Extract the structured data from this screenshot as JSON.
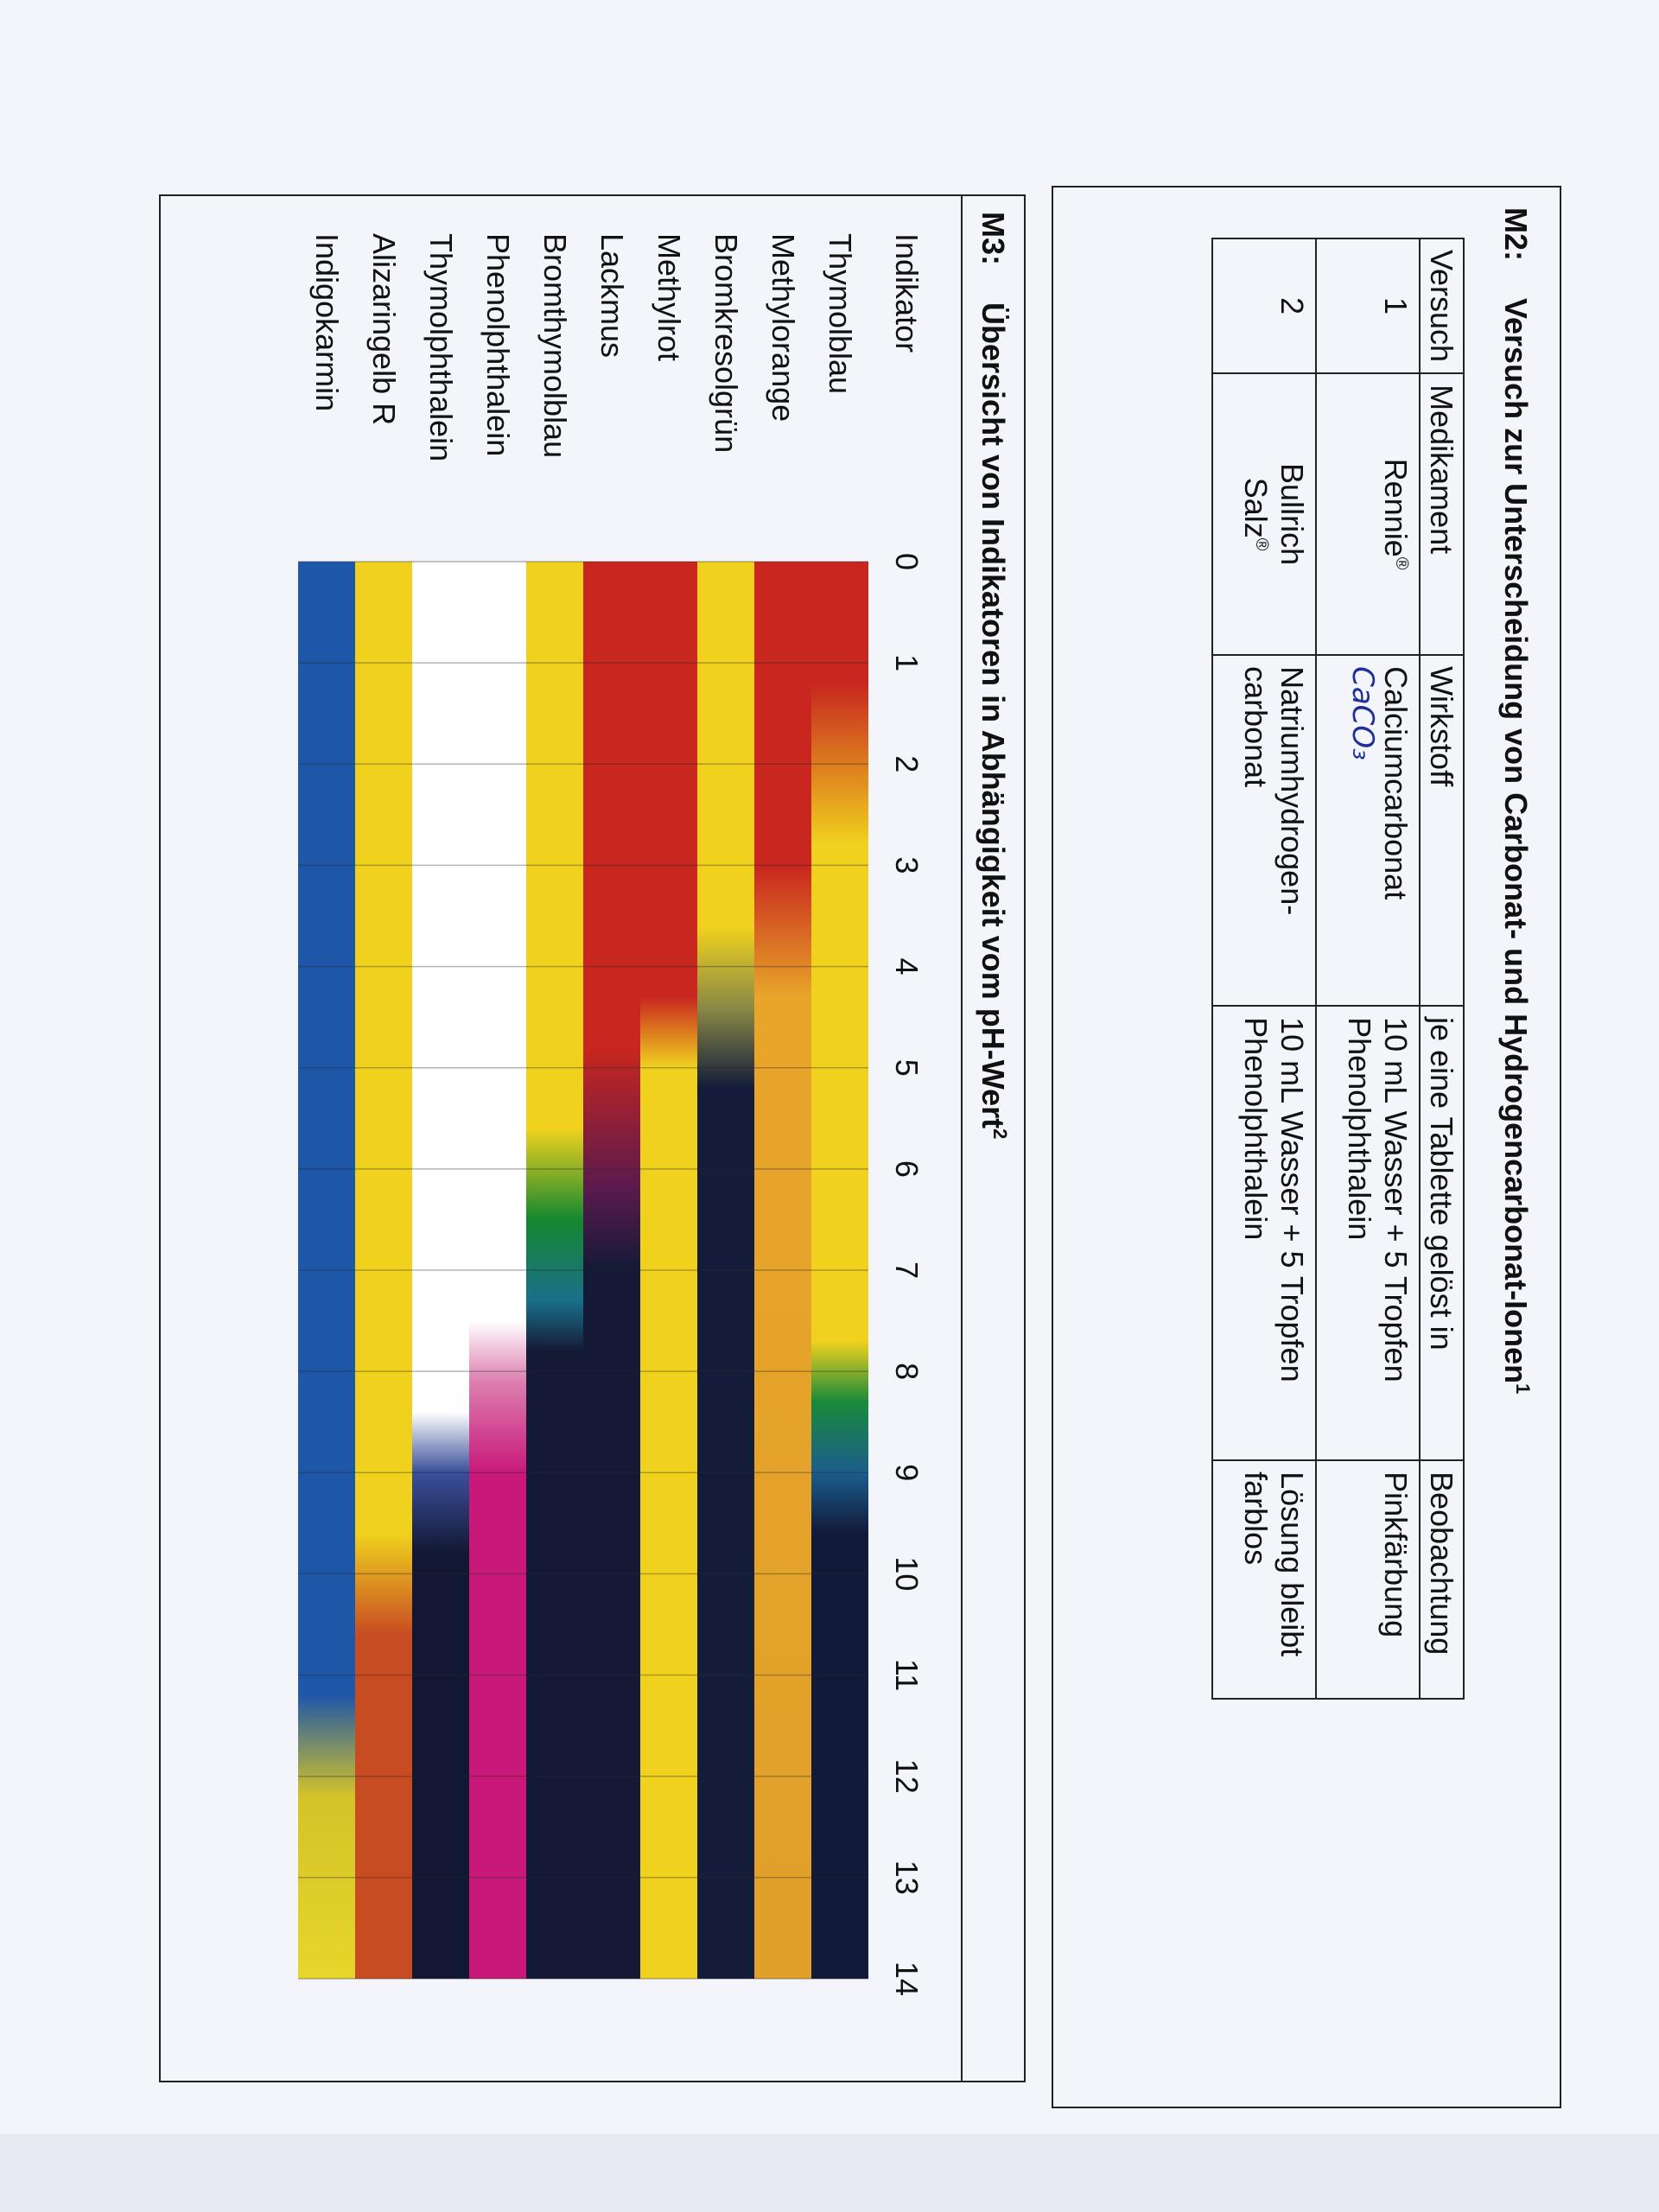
{
  "m2": {
    "label": "M2:",
    "title": "Versuch zur Unterscheidung von Carbonat- und Hydrogencarbonat-Ionen",
    "footnote_mark": "1",
    "headers": [
      "Versuch",
      "Medikament",
      "Wirkstoff",
      "je eine Tablette gelöst in",
      "Beobachtung"
    ],
    "rows": [
      {
        "versuch": "1",
        "medikament": "Rennie",
        "medikament_mark": "®",
        "wirkstoff": "Calciumcarbonat",
        "handwritten": "CaCO₃",
        "geloest_line1": "10 mL Wasser + 5 Tropfen",
        "geloest_line2": "Phenolphthalein",
        "beobachtung_line1": "Pinkfärbung",
        "beobachtung_line2": ""
      },
      {
        "versuch": "2",
        "medikament": "Bullrich",
        "medikament_line2": "Salz",
        "medikament_mark": "®",
        "wirkstoff": "Natriumhydrogen-",
        "wirkstoff_line2": "carbonat",
        "geloest_line1": "10 mL Wasser + 5 Tropfen",
        "geloest_line2": "Phenolphthalein",
        "beobachtung_line1": "Lösung bleibt",
        "beobachtung_line2": "farblos"
      }
    ]
  },
  "m3": {
    "label": "M3:",
    "title": "Übersicht von Indikatoren in Abhängigkeit vom pH-Wert",
    "footnote_mark": "2",
    "indicator_header": "Indikator",
    "ph_ticks": [
      "0",
      "1",
      "2",
      "3",
      "4",
      "5",
      "6",
      "7",
      "8",
      "9",
      "10",
      "11",
      "12",
      "13",
      "14"
    ],
    "indicators": [
      {
        "name": "Thymolblau",
        "stops": [
          [
            0,
            "#c8261f"
          ],
          [
            1.2,
            "#c8261f"
          ],
          [
            2.8,
            "#f0d21e"
          ],
          [
            7.7,
            "#f0d21e"
          ],
          [
            8.3,
            "#1a8a3a"
          ],
          [
            9.0,
            "#1b5d8c"
          ],
          [
            9.6,
            "#121a3a"
          ],
          [
            14,
            "#121a3a"
          ]
        ]
      },
      {
        "name": "Methylorange",
        "stops": [
          [
            0,
            "#c8261f"
          ],
          [
            3.0,
            "#c8261f"
          ],
          [
            4.3,
            "#e8a52a"
          ],
          [
            14,
            "#e0a02a"
          ]
        ]
      },
      {
        "name": "Bromkresolgrün",
        "stops": [
          [
            0,
            "#f0d21e"
          ],
          [
            3.6,
            "#f0d21e"
          ],
          [
            4.4,
            "#8b8a45"
          ],
          [
            5.2,
            "#141c3a"
          ],
          [
            14,
            "#141c3a"
          ]
        ]
      },
      {
        "name": "Methylrot",
        "stops": [
          [
            0,
            "#c8261f"
          ],
          [
            4.3,
            "#c8261f"
          ],
          [
            5.0,
            "#f0d21e"
          ],
          [
            14,
            "#f0d21e"
          ]
        ]
      },
      {
        "name": "Lackmus",
        "stops": [
          [
            0,
            "#c8261f"
          ],
          [
            4.8,
            "#c8261f"
          ],
          [
            6.2,
            "#5a1a4e"
          ],
          [
            7.0,
            "#141a36"
          ],
          [
            14,
            "#141a36"
          ]
        ]
      },
      {
        "name": "Bromthymolblau",
        "stops": [
          [
            0,
            "#f0d21e"
          ],
          [
            5.6,
            "#f0d21e"
          ],
          [
            6.5,
            "#15882f"
          ],
          [
            7.3,
            "#1a6f8a"
          ],
          [
            7.8,
            "#141a36"
          ],
          [
            14,
            "#141a36"
          ]
        ]
      },
      {
        "name": "Phenolphthalein",
        "stops": [
          [
            0,
            "#ffffff"
          ],
          [
            7.5,
            "#ffffff"
          ],
          [
            8.1,
            "#dd7fb0"
          ],
          [
            9.0,
            "#c8197a"
          ],
          [
            14,
            "#c8197a"
          ]
        ]
      },
      {
        "name": "Thymolphthalein",
        "stops": [
          [
            0,
            "#ffffff"
          ],
          [
            8.4,
            "#ffffff"
          ],
          [
            9.0,
            "#3a4f9a"
          ],
          [
            9.8,
            "#121833"
          ],
          [
            14,
            "#121833"
          ]
        ]
      },
      {
        "name": "Alizaringelb R",
        "stops": [
          [
            0,
            "#f0d21e"
          ],
          [
            9.6,
            "#f0d21e"
          ],
          [
            10.6,
            "#c84c22"
          ],
          [
            14,
            "#c84c22"
          ]
        ]
      },
      {
        "name": "Indigokarmin",
        "stops": [
          [
            0,
            "#1f57a8"
          ],
          [
            11.2,
            "#1f57a8"
          ],
          [
            12.2,
            "#d4c328"
          ],
          [
            14,
            "#e6d62a"
          ]
        ]
      }
    ]
  }
}
